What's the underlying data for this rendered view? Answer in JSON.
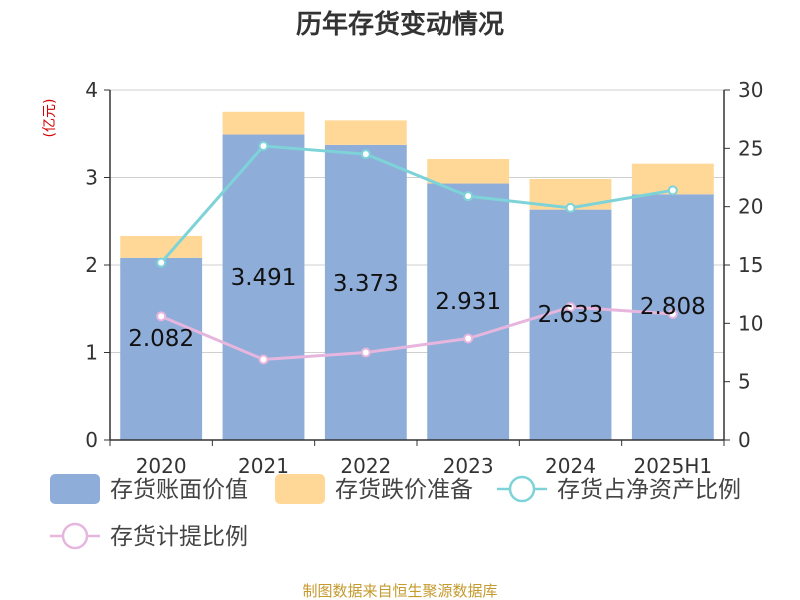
{
  "chart_data": {
    "type": "bar",
    "title": "历年存货变动情况",
    "left_unit": "(亿元)",
    "right_unit": "%",
    "categories": [
      "2020",
      "2021",
      "2022",
      "2023",
      "2024",
      "2025H1"
    ],
    "left_axis": {
      "ylim": [
        0,
        4
      ],
      "ticks": [
        "0",
        "1",
        "2",
        "3",
        "4"
      ]
    },
    "right_axis": {
      "ylim": [
        0,
        30
      ],
      "ticks": [
        "0",
        "5",
        "10",
        "15",
        "20",
        "25",
        "30"
      ]
    },
    "stacked_series": [
      {
        "name": "存货账面价值",
        "color": "#8eadd9",
        "values": [
          2.082,
          3.491,
          3.373,
          2.931,
          2.633,
          2.808
        ],
        "labels": [
          "2.082",
          "3.491",
          "3.373",
          "2.931",
          "2.633",
          "2.808"
        ]
      },
      {
        "name": "存货跌价准备",
        "color": "#ffd897",
        "values": [
          0.25,
          0.26,
          0.28,
          0.28,
          0.35,
          0.35
        ]
      }
    ],
    "line_series": [
      {
        "name": "存货占净资产比例",
        "color": "#7dd3d8",
        "axis": "right",
        "values": [
          15.2,
          25.2,
          24.5,
          20.9,
          19.9,
          21.4
        ]
      },
      {
        "name": "存货计提比例",
        "color": "#e6b6de",
        "axis": "right",
        "values": [
          10.6,
          6.9,
          7.5,
          8.7,
          11.4,
          10.8
        ]
      }
    ],
    "grid": true,
    "legend_position": "bottom"
  },
  "source_note": "制图数据来自恒生聚源数据库"
}
